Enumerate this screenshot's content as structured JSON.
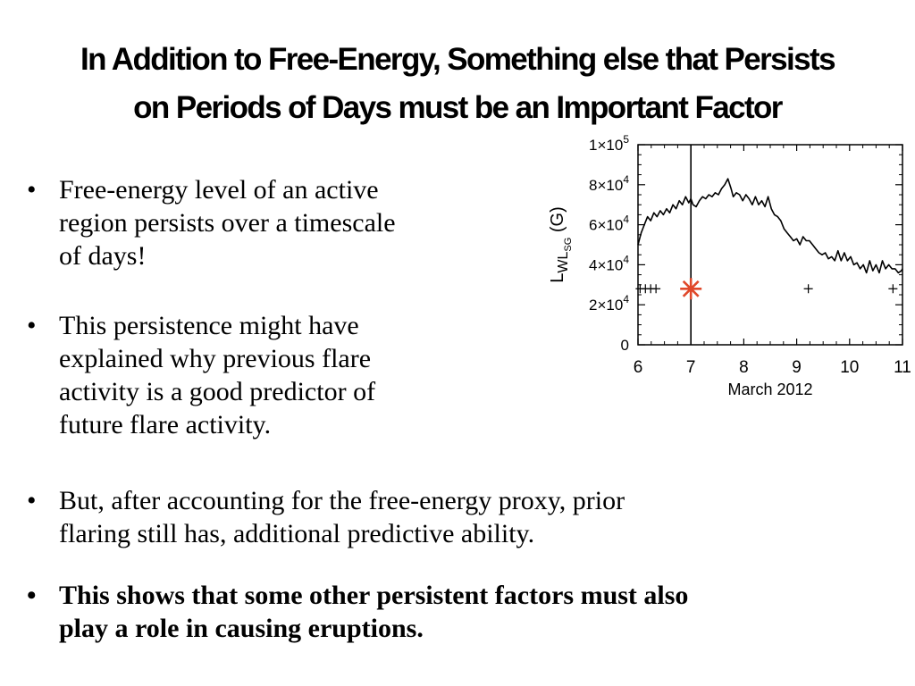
{
  "slide": {
    "title_lines": [
      "In Addition to Free-Energy, Something else that Persists",
      "on Periods of Days must be an Important Factor"
    ],
    "bullets": [
      {
        "marker": "•",
        "lines": [
          "Free-energy level of an active",
          "region persists over a timescale",
          "of days!"
        ],
        "bold": false
      },
      {
        "marker": "•",
        "lines": [
          "This persistence might have",
          "explained why previous flare",
          "activity is a good predictor of",
          "future flare activity."
        ],
        "bold": false
      },
      {
        "marker": "•",
        "lines": [
          "But, after accounting for the free-energy proxy, prior",
          "flaring still has, additional predictive ability."
        ],
        "bold": false
      },
      {
        "marker": "•",
        "lines": [
          "This shows that some other persistent factors must also",
          "play a role in causing eruptions."
        ],
        "bold": true
      }
    ]
  },
  "chart_data": {
    "type": "line",
    "title": "",
    "xlabel": "March  2012",
    "ylabel_main": "L",
    "ylabel_sub": "WL",
    "ylabel_subsub": "SG",
    "ylabel_unit": "(G)",
    "xlim": [
      6,
      11
    ],
    "ylim": [
      0,
      100000
    ],
    "x_ticks": [
      6,
      7,
      8,
      9,
      10,
      11
    ],
    "x_tick_labels": [
      "6",
      "7",
      "8",
      "9",
      "10",
      "11"
    ],
    "y_ticks": [
      0,
      20000,
      40000,
      60000,
      80000,
      100000
    ],
    "y_tick_labels": [
      {
        "mant": "0",
        "exp": ""
      },
      {
        "mant": "2×10",
        "exp": "4"
      },
      {
        "mant": "4×10",
        "exp": "4"
      },
      {
        "mant": "6×10",
        "exp": "4"
      },
      {
        "mant": "8×10",
        "exp": "4"
      },
      {
        "mant": "1×10",
        "exp": "5"
      }
    ],
    "grid": false,
    "vertical_line_x": 7.0,
    "series": [
      {
        "color": "#000000",
        "x": [
          6.0,
          6.06,
          6.12,
          6.18,
          6.24,
          6.3,
          6.36,
          6.42,
          6.48,
          6.54,
          6.6,
          6.66,
          6.72,
          6.78,
          6.84,
          6.9,
          6.96,
          7.0,
          7.04,
          7.1,
          7.16,
          7.22,
          7.28,
          7.34,
          7.4,
          7.46,
          7.52,
          7.58,
          7.64,
          7.7,
          7.76,
          7.8,
          7.86,
          7.92,
          7.98,
          8.04,
          8.1,
          8.16,
          8.22,
          8.28,
          8.34,
          8.4,
          8.46,
          8.52,
          8.58,
          8.64,
          8.7,
          8.76,
          8.82,
          8.88,
          8.94,
          9.0,
          9.06,
          9.12,
          9.18,
          9.24,
          9.3,
          9.36,
          9.42,
          9.48,
          9.54,
          9.6,
          9.66,
          9.72,
          9.78,
          9.84,
          9.9,
          9.96,
          10.02,
          10.08,
          10.14,
          10.2,
          10.26,
          10.32,
          10.38,
          10.44,
          10.5,
          10.56,
          10.62,
          10.68,
          10.74,
          10.8,
          10.86,
          10.92,
          10.98,
          11.0
        ],
        "y": [
          50000,
          56000,
          60000,
          64000,
          62000,
          66000,
          64000,
          67000,
          65000,
          68000,
          66000,
          70000,
          68000,
          72000,
          70000,
          74000,
          71000,
          73000,
          70000,
          69000,
          72000,
          74000,
          73000,
          75000,
          74000,
          76000,
          75000,
          78000,
          80000,
          83000,
          78000,
          74000,
          76000,
          75000,
          72000,
          75000,
          73000,
          70000,
          74000,
          70000,
          72000,
          69000,
          74000,
          68000,
          65000,
          64000,
          62000,
          58000,
          56000,
          54000,
          52000,
          53000,
          50000,
          54000,
          52000,
          52000,
          50000,
          48000,
          46000,
          45000,
          46000,
          43000,
          44000,
          42000,
          47000,
          42000,
          46000,
          42000,
          44000,
          40000,
          41000,
          38000,
          40000,
          36000,
          42000,
          37000,
          40000,
          36000,
          42000,
          38000,
          40000,
          38000,
          38000,
          36000,
          37000,
          38000
        ]
      }
    ],
    "plus_markers": [
      {
        "x": 6.04,
        "y": 28000
      },
      {
        "x": 6.14,
        "y": 28000
      },
      {
        "x": 6.24,
        "y": 28000
      },
      {
        "x": 6.34,
        "y": 28000
      },
      {
        "x": 9.22,
        "y": 28000
      },
      {
        "x": 10.82,
        "y": 28000
      }
    ],
    "star_marker": {
      "x": 7.0,
      "y": 28000,
      "color": "#e0482a"
    }
  }
}
